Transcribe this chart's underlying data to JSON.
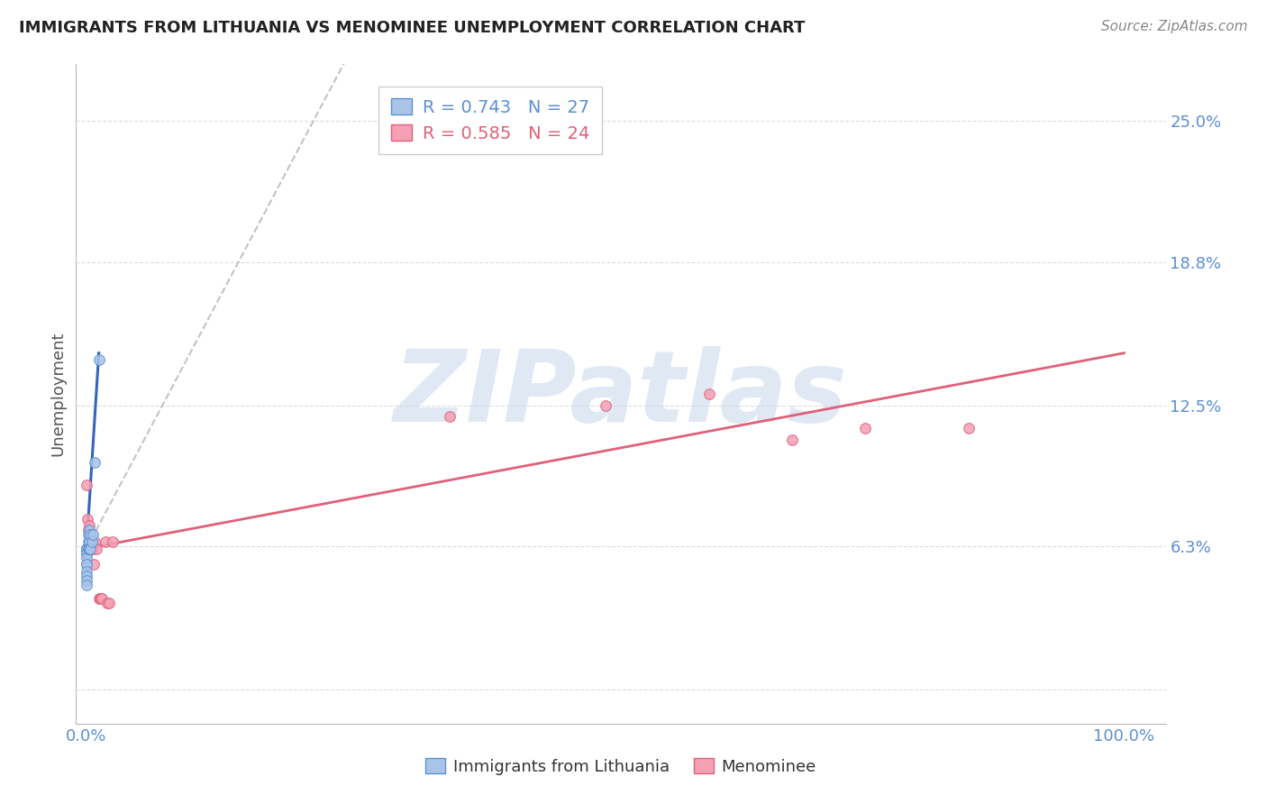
{
  "title": "IMMIGRANTS FROM LITHUANIA VS MENOMINEE UNEMPLOYMENT CORRELATION CHART",
  "source": "Source: ZipAtlas.com",
  "ylabel": "Unemployment",
  "yticks": [
    0.0,
    0.063,
    0.125,
    0.188,
    0.25
  ],
  "ytick_labels": [
    "",
    "6.3%",
    "12.5%",
    "18.8%",
    "25.0%"
  ],
  "xlim": [
    -0.01,
    1.04
  ],
  "ylim": [
    -0.015,
    0.275
  ],
  "legend_entries": [
    {
      "label": "R = 0.743   N = 27",
      "color": "#5b8fd4"
    },
    {
      "label": "R = 0.585   N = 24",
      "color": "#e0607a"
    }
  ],
  "legend_labels": [
    "Immigrants from Lithuania",
    "Menominee"
  ],
  "blue_scatter": {
    "x": [
      0.0,
      0.0,
      0.0,
      0.0,
      0.0,
      0.0,
      0.0,
      0.0,
      0.0,
      0.0,
      0.0,
      0.0,
      0.0,
      0.0,
      0.0,
      0.002,
      0.002,
      0.002,
      0.003,
      0.003,
      0.003,
      0.004,
      0.004,
      0.005,
      0.006,
      0.008,
      0.012
    ],
    "y": [
      0.055,
      0.062,
      0.062,
      0.062,
      0.062,
      0.062,
      0.062,
      0.06,
      0.06,
      0.058,
      0.055,
      0.052,
      0.05,
      0.048,
      0.046,
      0.068,
      0.065,
      0.062,
      0.07,
      0.065,
      0.062,
      0.068,
      0.062,
      0.065,
      0.068,
      0.1,
      0.145
    ],
    "color": "#aac4e8",
    "edge_color": "#5b8fd4",
    "size": 70
  },
  "pink_scatter": {
    "x": [
      0.0,
      0.001,
      0.002,
      0.003,
      0.004,
      0.005,
      0.006,
      0.007,
      0.008,
      0.01,
      0.012,
      0.013,
      0.014,
      0.015,
      0.018,
      0.02,
      0.022,
      0.025,
      0.35,
      0.5,
      0.6,
      0.68,
      0.75,
      0.85
    ],
    "y": [
      0.09,
      0.075,
      0.07,
      0.072,
      0.065,
      0.065,
      0.062,
      0.055,
      0.065,
      0.062,
      0.04,
      0.04,
      0.04,
      0.04,
      0.065,
      0.038,
      0.038,
      0.065,
      0.12,
      0.125,
      0.13,
      0.11,
      0.115,
      0.115
    ],
    "color": "#f4a0b5",
    "edge_color": "#e0607a",
    "size": 70
  },
  "blue_line_solid": {
    "x": [
      0.0,
      0.012
    ],
    "y": [
      0.062,
      0.148
    ],
    "color": "#3366bb",
    "linewidth": 2.2
  },
  "blue_line_dashed": {
    "x": [
      0.0,
      0.3
    ],
    "y": [
      0.062,
      0.32
    ],
    "color": "#aaaaaa",
    "linewidth": 1.5,
    "linestyle": "--"
  },
  "pink_line": {
    "x": [
      0.0,
      1.0
    ],
    "y": [
      0.062,
      0.148
    ],
    "color": "#e0607a",
    "linewidth": 2.0
  },
  "watermark": "ZIPatlas",
  "watermark_color": "#ccd9ee",
  "background_color": "#ffffff",
  "grid_color": "#dddddd"
}
